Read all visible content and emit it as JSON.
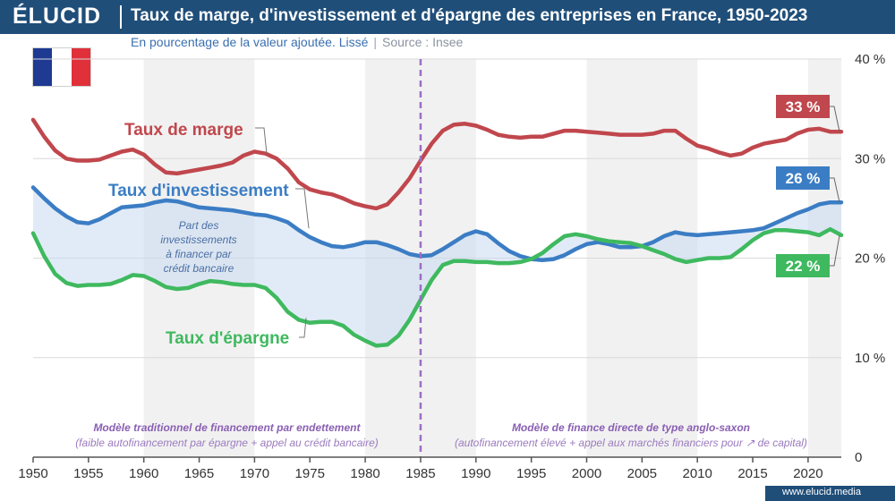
{
  "header": {
    "logo": "ÉLUCID",
    "title": "Taux de marge, d'investissement et d'épargne des entreprises en France, 1950-2023",
    "subtitle": "En pourcentage de la valeur ajoutée. Lissé",
    "source": "Source : Insee"
  },
  "flag_colors": [
    "#1f3a93",
    "#ffffff",
    "#e0303a"
  ],
  "footer": {
    "url": "www.elucid.media"
  },
  "chart_data": {
    "type": "line",
    "title": "Taux de marge, d'investissement et d'épargne des entreprises en France, 1950-2023",
    "xlim": [
      1950,
      2023
    ],
    "ylim": [
      0,
      40
    ],
    "x_ticks": [
      "1950",
      "1955",
      "1960",
      "1965",
      "1970",
      "1975",
      "1980",
      "1985",
      "1990",
      "1995",
      "2000",
      "2005",
      "2010",
      "2015",
      "2020"
    ],
    "y_ticks": [
      "0",
      "10 %",
      "20 %",
      "30 %",
      "40 %"
    ],
    "x_tick_values": [
      1950,
      1955,
      1960,
      1965,
      1970,
      1975,
      1980,
      1985,
      1990,
      1995,
      2000,
      2005,
      2010,
      2015,
      2020
    ],
    "y_tick_values": [
      0,
      10,
      20,
      30,
      40
    ],
    "series": [
      {
        "name": "Taux de marge",
        "color": "#c0474d",
        "x": [
          1950,
          1951,
          1952,
          1953,
          1954,
          1955,
          1956,
          1957,
          1958,
          1959,
          1960,
          1961,
          1962,
          1963,
          1964,
          1965,
          1966,
          1967,
          1968,
          1969,
          1970,
          1971,
          1972,
          1973,
          1974,
          1975,
          1976,
          1977,
          1978,
          1979,
          1980,
          1981,
          1982,
          1983,
          1984,
          1985,
          1986,
          1987,
          1988,
          1989,
          1990,
          1991,
          1992,
          1993,
          1994,
          1995,
          1996,
          1997,
          1998,
          1999,
          2000,
          2001,
          2002,
          2003,
          2004,
          2005,
          2006,
          2007,
          2008,
          2009,
          2010,
          2011,
          2012,
          2013,
          2014,
          2015,
          2016,
          2017,
          2018,
          2019,
          2020,
          2021,
          2022,
          2023
        ],
        "values": [
          33.9,
          32.2,
          30.8,
          30.0,
          29.8,
          29.8,
          29.9,
          30.3,
          30.7,
          30.9,
          30.4,
          29.4,
          28.6,
          28.5,
          28.7,
          28.9,
          29.1,
          29.3,
          29.6,
          30.3,
          30.7,
          30.5,
          30.0,
          29.0,
          27.6,
          26.9,
          26.6,
          26.4,
          26.0,
          25.5,
          25.2,
          25.0,
          25.4,
          26.6,
          28.0,
          29.8,
          31.5,
          32.8,
          33.4,
          33.5,
          33.3,
          32.9,
          32.4,
          32.2,
          32.1,
          32.2,
          32.2,
          32.5,
          32.8,
          32.8,
          32.7,
          32.6,
          32.5,
          32.4,
          32.4,
          32.4,
          32.5,
          32.8,
          32.8,
          32.0,
          31.3,
          31.0,
          30.6,
          30.3,
          30.5,
          31.1,
          31.5,
          31.7,
          31.9,
          32.5,
          32.9,
          33.0,
          32.7,
          32.7
        ]
      },
      {
        "name": "Taux d'investissement",
        "color": "#3b7dc4",
        "x": [
          1950,
          1951,
          1952,
          1953,
          1954,
          1955,
          1956,
          1957,
          1958,
          1959,
          1960,
          1961,
          1962,
          1963,
          1964,
          1965,
          1966,
          1967,
          1968,
          1969,
          1970,
          1971,
          1972,
          1973,
          1974,
          1975,
          1976,
          1977,
          1978,
          1979,
          1980,
          1981,
          1982,
          1983,
          1984,
          1985,
          1986,
          1987,
          1988,
          1989,
          1990,
          1991,
          1992,
          1993,
          1994,
          1995,
          1996,
          1997,
          1998,
          1999,
          2000,
          2001,
          2002,
          2003,
          2004,
          2005,
          2006,
          2007,
          2008,
          2009,
          2010,
          2011,
          2012,
          2013,
          2014,
          2015,
          2016,
          2017,
          2018,
          2019,
          2020,
          2021,
          2022,
          2023
        ],
        "values": [
          27.1,
          26.0,
          25.0,
          24.2,
          23.6,
          23.5,
          23.9,
          24.5,
          25.1,
          25.2,
          25.3,
          25.6,
          25.8,
          25.7,
          25.4,
          25.1,
          25.0,
          24.9,
          24.8,
          24.6,
          24.4,
          24.3,
          24.0,
          23.6,
          22.8,
          22.1,
          21.6,
          21.2,
          21.1,
          21.3,
          21.6,
          21.6,
          21.3,
          20.9,
          20.4,
          20.2,
          20.3,
          20.9,
          21.6,
          22.3,
          22.7,
          22.4,
          21.5,
          20.7,
          20.2,
          19.9,
          19.8,
          19.9,
          20.3,
          20.9,
          21.4,
          21.6,
          21.4,
          21.1,
          21.1,
          21.2,
          21.6,
          22.2,
          22.6,
          22.4,
          22.3,
          22.4,
          22.5,
          22.6,
          22.7,
          22.8,
          23.0,
          23.5,
          24.0,
          24.5,
          24.9,
          25.4,
          25.6,
          25.6
        ]
      },
      {
        "name": "Taux d'épargne",
        "color": "#3fb95f",
        "x": [
          1950,
          1951,
          1952,
          1953,
          1954,
          1955,
          1956,
          1957,
          1958,
          1959,
          1960,
          1961,
          1962,
          1963,
          1964,
          1965,
          1966,
          1967,
          1968,
          1969,
          1970,
          1971,
          1972,
          1973,
          1974,
          1975,
          1976,
          1977,
          1978,
          1979,
          1980,
          1981,
          1982,
          1983,
          1984,
          1985,
          1986,
          1987,
          1988,
          1989,
          1990,
          1991,
          1992,
          1993,
          1994,
          1995,
          1996,
          1997,
          1998,
          1999,
          2000,
          2001,
          2002,
          2003,
          2004,
          2005,
          2006,
          2007,
          2008,
          2009,
          2010,
          2011,
          2012,
          2013,
          2014,
          2015,
          2016,
          2017,
          2018,
          2019,
          2020,
          2021,
          2022,
          2023
        ],
        "values": [
          22.5,
          20.2,
          18.4,
          17.5,
          17.2,
          17.3,
          17.3,
          17.4,
          17.8,
          18.3,
          18.2,
          17.7,
          17.1,
          16.9,
          17.0,
          17.4,
          17.7,
          17.6,
          17.4,
          17.3,
          17.3,
          17.0,
          16.0,
          14.6,
          13.8,
          13.5,
          13.6,
          13.6,
          13.2,
          12.3,
          11.7,
          11.2,
          11.3,
          12.2,
          13.8,
          15.8,
          17.8,
          19.3,
          19.7,
          19.7,
          19.6,
          19.6,
          19.5,
          19.5,
          19.6,
          19.9,
          20.5,
          21.4,
          22.2,
          22.4,
          22.2,
          21.9,
          21.7,
          21.6,
          21.5,
          21.2,
          20.8,
          20.4,
          19.9,
          19.6,
          19.8,
          20.0,
          20.0,
          20.1,
          20.9,
          21.8,
          22.5,
          22.8,
          22.8,
          22.7,
          22.6,
          22.3,
          22.9,
          22.3
        ]
      }
    ],
    "series_labels": [
      "Taux de marge",
      "Taux d'investissement",
      "Taux d'épargne"
    ],
    "end_badges": [
      {
        "text": "33 %",
        "value": 32.7,
        "color": "#c0474d"
      },
      {
        "text": "26 %",
        "value": 25.6,
        "color": "#3b7dc4"
      },
      {
        "text": "22 %",
        "value": 22.3,
        "color": "#3fb95f"
      }
    ],
    "shaded_area_label": [
      "Part des",
      "investissements",
      "à financer par",
      "crédit bancaire"
    ],
    "divider_year": 1985,
    "period_left": {
      "title": "Modèle traditionnel de financement par endettement",
      "desc": "(faible autofinancement par épargne + appel au crédit bancaire)"
    },
    "period_right": {
      "title": "Modèle de finance directe de type anglo-saxon",
      "desc": "(autofinancement élevé + appel aux marchés financiers pour ↗ de capital)"
    },
    "decade_bands": [
      [
        1960,
        1970
      ],
      [
        1980,
        1990
      ],
      [
        2000,
        2010
      ],
      [
        2020,
        2023
      ]
    ]
  }
}
